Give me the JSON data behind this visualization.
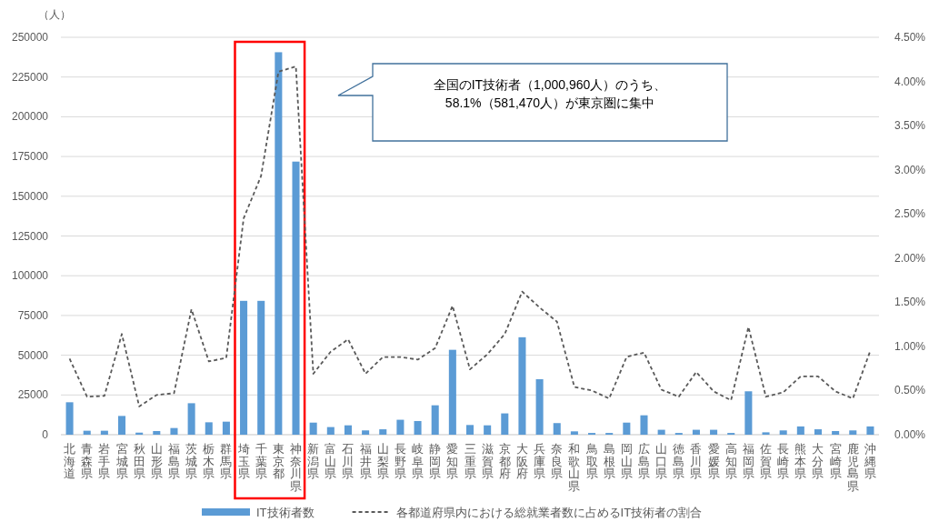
{
  "chart_data": {
    "type": "bar",
    "ylabel": "（人）",
    "legend": "bottom",
    "grid": "y",
    "categories": [
      "北海道",
      "青森県",
      "岩手県",
      "宮城県",
      "秋田県",
      "山形県",
      "福島県",
      "茨城県",
      "栃木県",
      "群馬県",
      "埼玉県",
      "千葉県",
      "東京都",
      "神奈川県",
      "新潟県",
      "富山県",
      "石川県",
      "福井県",
      "山梨県",
      "長野県",
      "岐阜県",
      "静岡県",
      "愛知県",
      "三重県",
      "滋賀県",
      "京都府",
      "大阪府",
      "兵庫県",
      "奈良県",
      "和歌山県",
      "鳥取県",
      "島根県",
      "岡山県",
      "広島県",
      "山口県",
      "徳島県",
      "香川県",
      "愛媛県",
      "高知県",
      "福岡県",
      "佐賀県",
      "長崎県",
      "熊本県",
      "大分県",
      "宮崎県",
      "鹿児島県",
      "沖縄県"
    ],
    "series": [
      {
        "name": "IT技術者数",
        "color": "#5b9bd5",
        "values": [
          20400,
          2500,
          2500,
          11800,
          1300,
          2300,
          4200,
          19800,
          7800,
          8200,
          84200,
          84200,
          240600,
          171800,
          7600,
          4800,
          5900,
          2700,
          3400,
          9400,
          8600,
          18500,
          53400,
          6100,
          5900,
          13400,
          61300,
          34900,
          7300,
          2100,
          1100,
          1100,
          7600,
          12200,
          3100,
          1100,
          3100,
          3100,
          1100,
          27300,
          1500,
          2700,
          5200,
          3400,
          2300,
          2700,
          5200
        ]
      },
      {
        "name": "各都道府県内における総就業者数に占めるIT技術者の割合",
        "type": "line",
        "axis": "y2",
        "color": "#595959",
        "line_style": "dashed",
        "values": [
          0.86,
          0.43,
          0.44,
          1.14,
          0.32,
          0.45,
          0.47,
          1.42,
          0.83,
          0.87,
          2.45,
          2.93,
          4.11,
          4.17,
          0.69,
          0.94,
          1.08,
          0.69,
          0.88,
          0.88,
          0.85,
          0.98,
          1.46,
          0.74,
          0.91,
          1.14,
          1.62,
          1.44,
          1.28,
          0.54,
          0.5,
          0.41,
          0.88,
          0.93,
          0.51,
          0.43,
          0.71,
          0.49,
          0.39,
          1.22,
          0.43,
          0.48,
          0.66,
          0.66,
          0.49,
          0.41,
          0.95
        ]
      }
    ],
    "ylim": [
      0,
      250000
    ],
    "yticks": [
      0,
      25000,
      50000,
      75000,
      100000,
      125000,
      150000,
      175000,
      200000,
      225000,
      250000
    ],
    "y2lim": [
      0,
      4.5
    ],
    "y2ticks": [
      {
        "value": 0,
        "label": "0.00%"
      },
      {
        "value": 0.5,
        "label": "0.50%"
      },
      {
        "value": 1,
        "label": "1.00%"
      },
      {
        "value": 1.5,
        "label": "1.50%"
      },
      {
        "value": 2,
        "label": "2.00%"
      },
      {
        "value": 2.5,
        "label": "2.50%"
      },
      {
        "value": 3,
        "label": "3.00%"
      },
      {
        "value": 3.5,
        "label": "3.50%"
      },
      {
        "value": 4,
        "label": "4.00%"
      },
      {
        "value": 4.5,
        "label": "4.50%"
      }
    ],
    "annotations": [
      "全国のIT技術者（1,000,960人）のうち、",
      "58.1%（581,470人）が東京圏に集中"
    ]
  }
}
